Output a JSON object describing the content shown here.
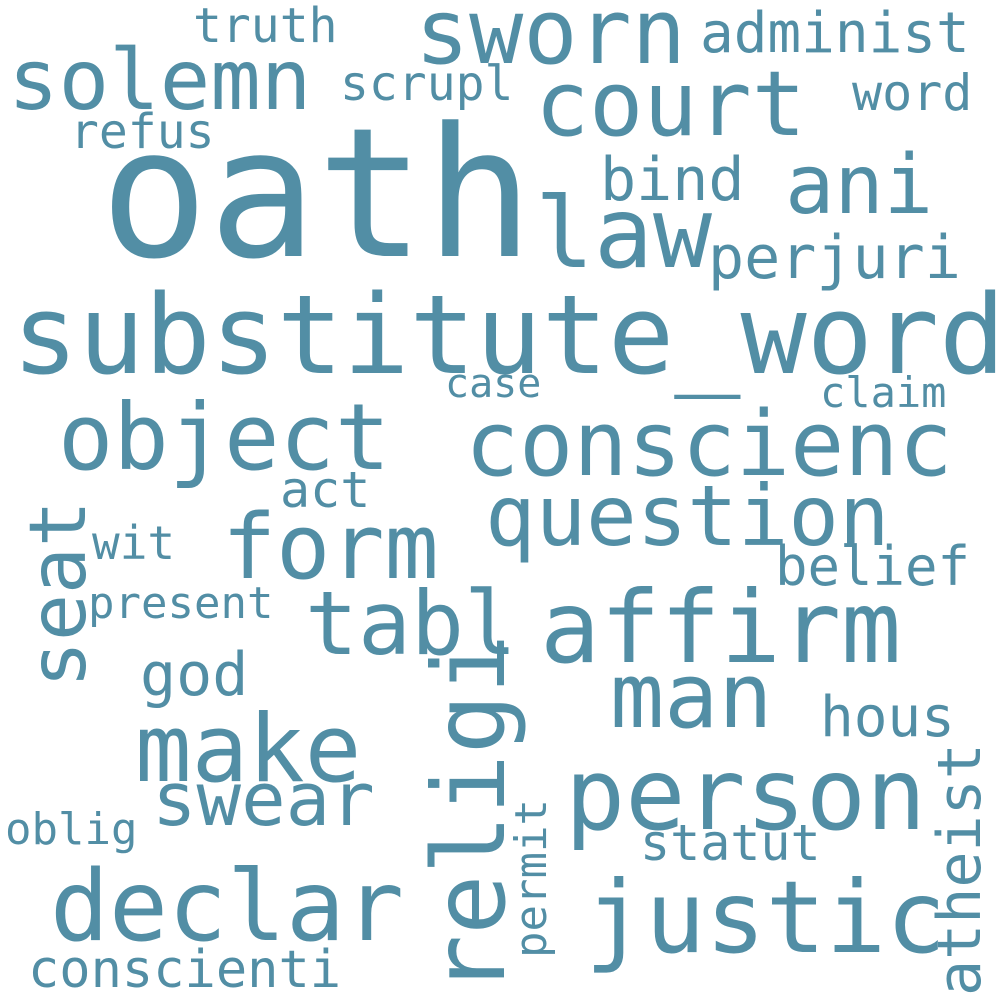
{
  "color": "#528ea5",
  "background": "#ffffff",
  "words": {
    "oath": "oath",
    "substitute_word": "substitute_word",
    "sworn": "sworn",
    "solemn": "solemn",
    "court": "court",
    "law": "law",
    "ani": "ani",
    "affirm": "affirm",
    "conscienc": "conscienc",
    "object": "object",
    "question": "question",
    "form": "form",
    "tabl": "tabl",
    "person": "person",
    "justic": "justic",
    "declar": "declar",
    "make": "make",
    "man": "man",
    "religi": "religi",
    "seat": "seat",
    "swear": "swear",
    "conscienti": "conscienti",
    "perjuri": "perjuri",
    "bind": "bind",
    "administ": "administ",
    "truth": "truth",
    "scrupl": "scrupl",
    "word": "word",
    "refus": "refus",
    "case": "case",
    "claim": "claim",
    "act": "act",
    "wit": "wit",
    "belief": "belief",
    "present": "present",
    "god": "god",
    "hous": "hous",
    "atheist": "atheist",
    "statut": "statut",
    "oblig": "oblig",
    "permit": "permit"
  }
}
